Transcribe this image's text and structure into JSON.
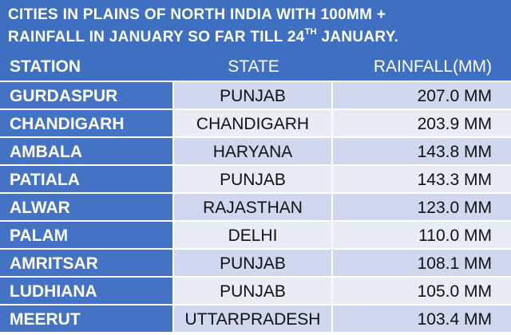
{
  "title": {
    "line1": "CITIES IN PLAINS OF NORTH INDIA WITH 100MM +",
    "line2_prefix": "RAINFALL IN JANUARY SO FAR TILL 24",
    "line2_sup": "TH",
    "line2_suffix": " JANUARY."
  },
  "colors": {
    "header_blue": "#3f6fc0",
    "station_blue": "#4472c4",
    "row_odd": "#cfd8ee",
    "row_even": "#e8ecf6"
  },
  "chart_data": {
    "type": "table",
    "columns": [
      "STATION",
      "STATE",
      "RAINFALL(MM)"
    ],
    "rows": [
      {
        "station": "GURDASPUR",
        "state": "PUNJAB",
        "rainfall": "207.0 MM"
      },
      {
        "station": "CHANDIGARH",
        "state": "CHANDIGARH",
        "rainfall": "203.9 MM"
      },
      {
        "station": "AMBALA",
        "state": "HARYANA",
        "rainfall": "143.8 MM"
      },
      {
        "station": "PATIALA",
        "state": "PUNJAB",
        "rainfall": "143.3 MM"
      },
      {
        "station": "ALWAR",
        "state": "RAJASTHAN",
        "rainfall": "123.0 MM"
      },
      {
        "station": "PALAM",
        "state": "DELHI",
        "rainfall": "110.0 MM"
      },
      {
        "station": "AMRITSAR",
        "state": "PUNJAB",
        "rainfall": "108.1 MM"
      },
      {
        "station": "LUDHIANA",
        "state": "PUNJAB",
        "rainfall": "105.0 MM"
      },
      {
        "station": "MEERUT",
        "state": "UTTARPRADESH",
        "rainfall": "103.4 MM"
      }
    ]
  }
}
